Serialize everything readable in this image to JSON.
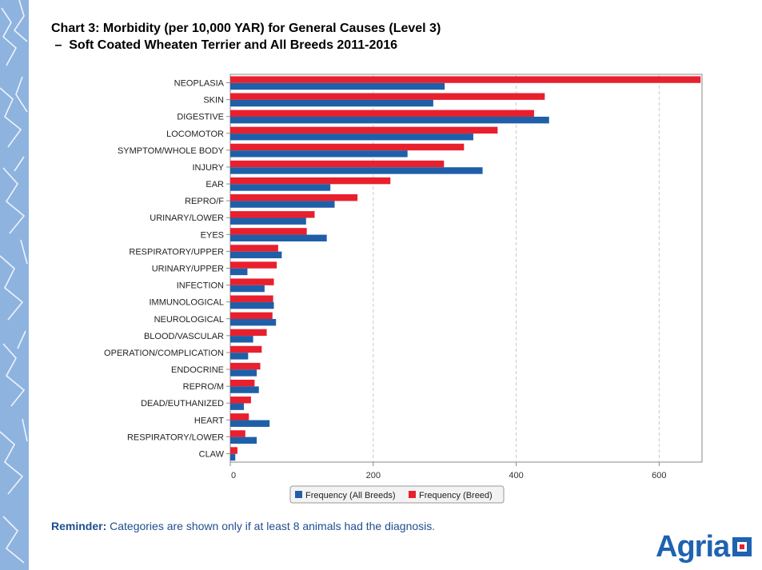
{
  "title_line1": "Chart 3: Morbidity (per 10,000 YAR) for General Causes (Level 3)",
  "title_line2": " –  Soft Coated Wheaten Terrier and All Breeds 2011-2016",
  "reminder": {
    "label": "Reminder:",
    "text": " Categories are shown only if at least 8 animals had the diagnosis."
  },
  "logo_text": "Agria",
  "colors": {
    "all_breeds": "#1f5fa8",
    "breed": "#e8202e",
    "strip": "#8fb3df"
  },
  "chart_data": {
    "type": "bar",
    "orientation": "horizontal",
    "title": "",
    "xlabel": "",
    "ylabel": "",
    "xlim": [
      0,
      660
    ],
    "xticks": [
      0,
      200,
      400,
      600
    ],
    "grid": true,
    "legend_position": "bottom",
    "categories": [
      "NEOPLASIA",
      "SKIN",
      "DIGESTIVE",
      "LOCOMOTOR",
      "SYMPTOM/WHOLE BODY",
      "INJURY",
      "EAR",
      "REPRO/F",
      "URINARY/LOWER",
      "EYES",
      "RESPIRATORY/UPPER",
      "URINARY/UPPER",
      "INFECTION",
      "IMMUNOLOGICAL",
      "NEUROLOGICAL",
      "BLOOD/VASCULAR",
      "OPERATION/COMPLICATION",
      "ENDOCRINE",
      "REPRO/M",
      "DEAD/EUTHANIZED",
      "HEART",
      "RESPIRATORY/LOWER",
      "CLAW"
    ],
    "series": [
      {
        "name": "Frequency (All Breeds)",
        "color": "#1f5fa8",
        "values": [
          300,
          284,
          446,
          340,
          248,
          353,
          140,
          146,
          106,
          135,
          72,
          24,
          48,
          61,
          64,
          32,
          25,
          37,
          40,
          19,
          55,
          37,
          7
        ]
      },
      {
        "name": "Frequency (Breed)",
        "color": "#e8202e",
        "values": [
          658,
          440,
          425,
          374,
          327,
          299,
          224,
          178,
          118,
          107,
          67,
          65,
          61,
          60,
          59,
          51,
          44,
          42,
          34,
          29,
          26,
          21,
          10
        ]
      }
    ]
  }
}
